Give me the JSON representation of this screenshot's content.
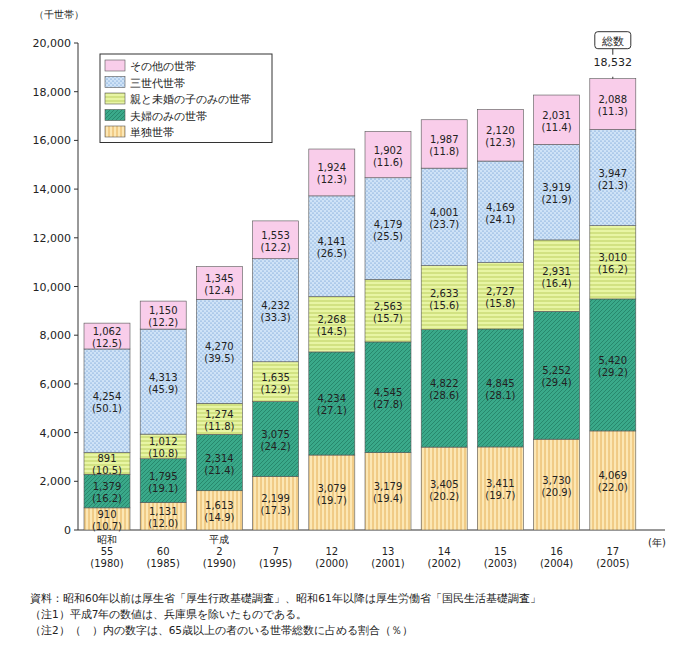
{
  "chart_data": {
    "type": "bar",
    "stacked": true,
    "data_labels": true,
    "grid": false,
    "legend": "upper-left",
    "y_label": "（千世帯）",
    "x_label": "(年)",
    "categories": [
      "昭和\n55\n(1980)",
      "60\n(1985)",
      "平成\n2\n(1990)",
      "7\n(1995)",
      "12\n(2000)",
      "13\n(2001)",
      "14\n(2002)",
      "15\n(2003)",
      "16\n(2004)",
      "17\n(2005)"
    ],
    "ylim": [
      0,
      20000
    ],
    "yticks": [
      0,
      {
        "value": 2000,
        "label": "2,000"
      },
      {
        "value": 4000,
        "label": "4,000"
      },
      {
        "value": 6000,
        "label": "6,000"
      },
      {
        "value": 8000,
        "label": "8,000"
      },
      {
        "value": 10000,
        "label": "10,000"
      },
      {
        "value": 12000,
        "label": "12,000"
      },
      {
        "value": 14000,
        "label": "14,000"
      },
      {
        "value": 16000,
        "label": "16,000"
      },
      {
        "value": 18000,
        "label": "18,000"
      },
      {
        "value": 20000,
        "label": "20,000"
      }
    ],
    "series": [
      {
        "name": "単独世帯",
        "color": "#fce7b4",
        "values": [
          910,
          1131,
          1613,
          2199,
          3079,
          3179,
          3405,
          3411,
          3730,
          4069
        ],
        "value_labels": [
          "910",
          "1,131",
          "1,613",
          "2,199",
          "3,079",
          "3,179",
          "3,405",
          "3,411",
          "3,730",
          "4,069"
        ],
        "shares": [
          10.7,
          12.0,
          14.9,
          17.3,
          19.7,
          19.4,
          20.2,
          19.7,
          20.9,
          22.0
        ],
        "share_labels": [
          "(10.7)",
          "(12.0)",
          "(14.9)",
          "(17.3)",
          "(19.7)",
          "(19.4)",
          "(20.2)",
          "(19.7)",
          "(20.9)",
          "(22.0)"
        ]
      },
      {
        "name": "夫婦のみの世帯",
        "color": "#3aa98a",
        "values": [
          1379,
          1795,
          2314,
          3075,
          4234,
          4545,
          4822,
          4845,
          5252,
          5420
        ],
        "value_labels": [
          "1,379",
          "1,795",
          "2,314",
          "3,075",
          "4,234",
          "4,545",
          "4,822",
          "4,845",
          "5,252",
          "5,420"
        ],
        "shares": [
          16.2,
          19.1,
          21.4,
          24.2,
          27.1,
          27.8,
          28.6,
          28.1,
          29.4,
          29.2
        ],
        "share_labels": [
          "(16.2)",
          "(19.1)",
          "(21.4)",
          "(24.2)",
          "(27.1)",
          "(27.8)",
          "(28.6)",
          "(28.1)",
          "(29.4)",
          "(29.2)"
        ]
      },
      {
        "name": "親と未婚の子のみの世帯",
        "color": "#e8f5a4",
        "values": [
          891,
          1012,
          1274,
          1635,
          2268,
          2563,
          2633,
          2727,
          2931,
          3010
        ],
        "value_labels": [
          "891",
          "1,012",
          "1,274",
          "1,635",
          "2,268",
          "2,563",
          "2,633",
          "2,727",
          "2,931",
          "3,010"
        ],
        "shares": [
          10.5,
          10.8,
          11.8,
          12.9,
          14.5,
          15.7,
          15.6,
          15.8,
          16.4,
          16.2
        ],
        "share_labels": [
          "(10.5)",
          "(10.8)",
          "(11.8)",
          "(12.9)",
          "(14.5)",
          "(15.7)",
          "(15.6)",
          "(15.8)",
          "(16.4)",
          "(16.2)"
        ]
      },
      {
        "name": "三世代世帯",
        "color": "#cfe3f7",
        "values": [
          4254,
          4313,
          4270,
          4232,
          4141,
          4179,
          4001,
          4169,
          3919,
          3947
        ],
        "value_labels": [
          "4,254",
          "4,313",
          "4,270",
          "4,232",
          "4,141",
          "4,179",
          "4,001",
          "4,169",
          "3,919",
          "3,947"
        ],
        "shares": [
          50.1,
          45.9,
          39.5,
          33.3,
          26.5,
          25.5,
          23.7,
          24.1,
          21.9,
          21.3
        ],
        "share_labels": [
          "(50.1)",
          "(45.9)",
          "(39.5)",
          "(33.3)",
          "(26.5)",
          "(25.5)",
          "(23.7)",
          "(24.1)",
          "(21.9)",
          "(21.3)"
        ]
      },
      {
        "name": "その他の世帯",
        "color": "#f9cdea",
        "values": [
          1062,
          1150,
          1345,
          1553,
          1924,
          1902,
          1987,
          2120,
          2031,
          2088
        ],
        "value_labels": [
          "1,062",
          "1,150",
          "1,345",
          "1,553",
          "1,924",
          "1,902",
          "1,987",
          "2,120",
          "2,031",
          "2,088"
        ],
        "shares": [
          12.5,
          12.2,
          12.4,
          12.2,
          12.3,
          11.6,
          11.8,
          12.3,
          11.4,
          11.3
        ],
        "share_labels": [
          "(12.5)",
          "(12.2)",
          "(12.4)",
          "(12.2)",
          "(12.3)",
          "(11.6)",
          "(11.8)",
          "(12.3)",
          "(11.4)",
          "(11.3)"
        ]
      }
    ],
    "total": {
      "label": "総数",
      "value": 18532,
      "value_label": "18,532"
    },
    "notes": [
      "資料：昭和60年以前は厚生省「厚生行政基礎調査」、昭和61年以降は厚生労働省「国民生活基礎調査」",
      "（注1）平成7年の数値は、兵庫県を除いたものである。",
      "（注2）（　）内の数字は、65歳以上の者のいる世帯総数に占める割合（％）"
    ]
  }
}
